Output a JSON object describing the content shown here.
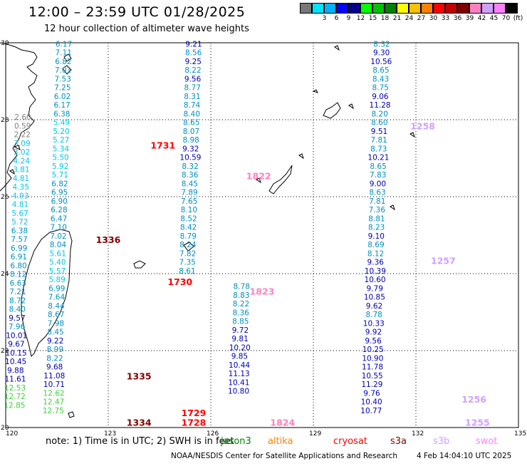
{
  "header": {
    "title": "12:00 – 23:59 UTC 01/28/2025",
    "subtitle": "12 hour collection of altimeter wave heights"
  },
  "legend": {
    "items": [
      {
        "color": "#777777",
        "label": ""
      },
      {
        "color": "#00e0ff",
        "label": "3"
      },
      {
        "color": "#00b0ff",
        "label": "6"
      },
      {
        "color": "#0000ff",
        "label": "9"
      },
      {
        "color": "#00008b",
        "label": "12"
      },
      {
        "color": "#00ff00",
        "label": "15"
      },
      {
        "color": "#00c000",
        "label": "18"
      },
      {
        "color": "#008000",
        "label": "21"
      },
      {
        "color": "#ffff00",
        "label": "24"
      },
      {
        "color": "#ffc000",
        "label": "27"
      },
      {
        "color": "#ff7f00",
        "label": "30"
      },
      {
        "color": "#ff0000",
        "label": "33"
      },
      {
        "color": "#c00000",
        "label": "36"
      },
      {
        "color": "#800000",
        "label": "39"
      },
      {
        "color": "#ff80c0",
        "label": "42"
      },
      {
        "color": "#d0a0ff",
        "label": "45"
      },
      {
        "color": "#ff80ff",
        "label": "70"
      },
      {
        "color": "#000000",
        "label": "(ft)"
      }
    ]
  },
  "axes": {
    "lon_ticks": [
      "120",
      "123",
      "126",
      "129",
      "132",
      "135"
    ],
    "lat_ticks": [
      "30",
      "28",
      "26",
      "24",
      "22",
      "20"
    ]
  },
  "tracks": [
    {
      "name": "track-a",
      "lon": 121.7,
      "lat_start": 29.9,
      "color": "#0090c0",
      "values": [
        "6.17",
        "7.11",
        "6.82",
        "7.01",
        "7.53",
        "7.25",
        "6.02",
        "6.17",
        "6.38",
        "5.49",
        "5.20",
        "5.27",
        "5.34",
        "5.50",
        "5.92",
        "5.71",
        "6.82",
        "6.95",
        "6.90",
        "6.28",
        "6.47",
        "7.10",
        "7.02",
        "8.04",
        "5.61",
        "5.40",
        "5.57",
        "5.89",
        "6.99",
        "7.64",
        "8.44",
        "8.67",
        "7.98",
        "8.45",
        "9.22",
        "8.99",
        "8.22",
        "9.68",
        "11.08",
        "10.71",
        "12.62",
        "12.47",
        "12.75"
      ]
    },
    {
      "name": "track-b",
      "lon": 125.5,
      "lat_start": 29.9,
      "color": "#0000b0",
      "values": [
        "9.21",
        "8.56",
        "9.25",
        "8.22",
        "9.56",
        "8.77",
        "8.31",
        "8.74",
        "8.40",
        "8.65",
        "8.07",
        "8.98",
        "9.32",
        "10.59",
        "8.32",
        "8.36",
        "8.45",
        "7.89",
        "7.65",
        "8.10",
        "8.52",
        "8.42",
        "8.79",
        "8.24",
        "7.82",
        "7.35",
        "8.61"
      ]
    },
    {
      "name": "track-c",
      "lon": 120.5,
      "lat_start": 28.0,
      "color": "#0090c0",
      "values": [
        "2.60",
        "0.59",
        "2.22",
        "3.09",
        "3.02",
        "4.24",
        "3.81",
        "4.81",
        "4.35",
        "4.93",
        "4.81",
        "5.67",
        "5.72",
        "6.38",
        "7.57",
        "6.99",
        "6.91",
        "6.80",
        "8.12",
        "6.63",
        "7.21",
        "8.72",
        "8.40",
        "9.57",
        "7.96",
        "10.01",
        "9.67",
        "10.15",
        "10.45",
        "9.88",
        "11.61",
        "12.53",
        "12.72",
        "12.85"
      ]
    },
    {
      "name": "track-d",
      "lon": 126.9,
      "lat_start": 23.6,
      "color": "#0000b0",
      "values": [
        "8.78",
        "8.83",
        "8.22",
        "8.36",
        "8.85",
        "9.72",
        "9.81",
        "10.20",
        "9.85",
        "10.44",
        "11.13",
        "10.41",
        "10.80"
      ]
    },
    {
      "name": "track-e",
      "lon": 131.0,
      "lat_start": 29.9,
      "color": "#0090c0",
      "values": [
        "8.32",
        "9.30",
        "10.56",
        "8.65",
        "8.43",
        "8.75",
        "9.06",
        "11.28",
        "8.20",
        "8.60",
        "9.51",
        "7.81",
        "8.73",
        "10.21",
        "8.65",
        "7.83",
        "9.00",
        "8.63",
        "7.81",
        "7.36",
        "8.81",
        "8.23",
        "9.10",
        "8.69",
        "8.12",
        "9.36",
        "10.39",
        "10.60",
        "9.79",
        "10.85",
        "9.62",
        "8.78",
        "10.33",
        "9.92",
        "9.56",
        "10.25",
        "10.90",
        "11.78",
        "10.55",
        "11.29",
        "9.76",
        "10.40",
        "10.77"
      ]
    }
  ],
  "time_labels": [
    {
      "text": "1731",
      "lon": 124.6,
      "lat": 27.25,
      "color": "#ff0000"
    },
    {
      "text": "1822",
      "lon": 127.4,
      "lat": 26.45,
      "color": "#ff80c0"
    },
    {
      "text": "1258",
      "lon": 132.2,
      "lat": 27.75,
      "color": "#d0a0ff"
    },
    {
      "text": "1336",
      "lon": 123.0,
      "lat": 24.8,
      "color": "#800000"
    },
    {
      "text": "1257",
      "lon": 132.8,
      "lat": 24.25,
      "color": "#d0a0ff"
    },
    {
      "text": "1730",
      "lon": 125.1,
      "lat": 23.7,
      "color": "#ff0000"
    },
    {
      "text": "1823",
      "lon": 127.5,
      "lat": 23.45,
      "color": "#ff80c0"
    },
    {
      "text": "1335",
      "lon": 123.9,
      "lat": 21.25,
      "color": "#800000"
    },
    {
      "text": "1256",
      "lon": 133.7,
      "lat": 20.65,
      "color": "#d0a0ff"
    },
    {
      "text": "1729",
      "lon": 125.5,
      "lat": 20.3,
      "color": "#ff0000"
    },
    {
      "text": "1334",
      "lon": 123.9,
      "lat": 20.05,
      "color": "#800000"
    },
    {
      "text": "1728",
      "lon": 125.5,
      "lat": 20.05,
      "color": "#ff0000"
    },
    {
      "text": "1824",
      "lon": 128.1,
      "lat": 20.05,
      "color": "#ff80c0"
    },
    {
      "text": "1255",
      "lon": 133.8,
      "lat": 20.05,
      "color": "#d0a0ff"
    }
  ],
  "footer": {
    "note": "note:  1) Time is in UTC;  2) SWH is in feet",
    "satellites": [
      {
        "name": "jason3",
        "color": "#008000"
      },
      {
        "name": "altika",
        "color": "#ff7f00"
      },
      {
        "name": "cryosat",
        "color": "#ff0000"
      },
      {
        "name": "s3a",
        "color": "#800000"
      },
      {
        "name": "s3b",
        "color": "#d0a0ff"
      },
      {
        "name": "swot",
        "color": "#ff80ff"
      }
    ],
    "credit": "NOAA/NESDIS Center for Satellite Applications and Research",
    "timestamp": "4 Feb 14:04:10 UTC 2025"
  }
}
